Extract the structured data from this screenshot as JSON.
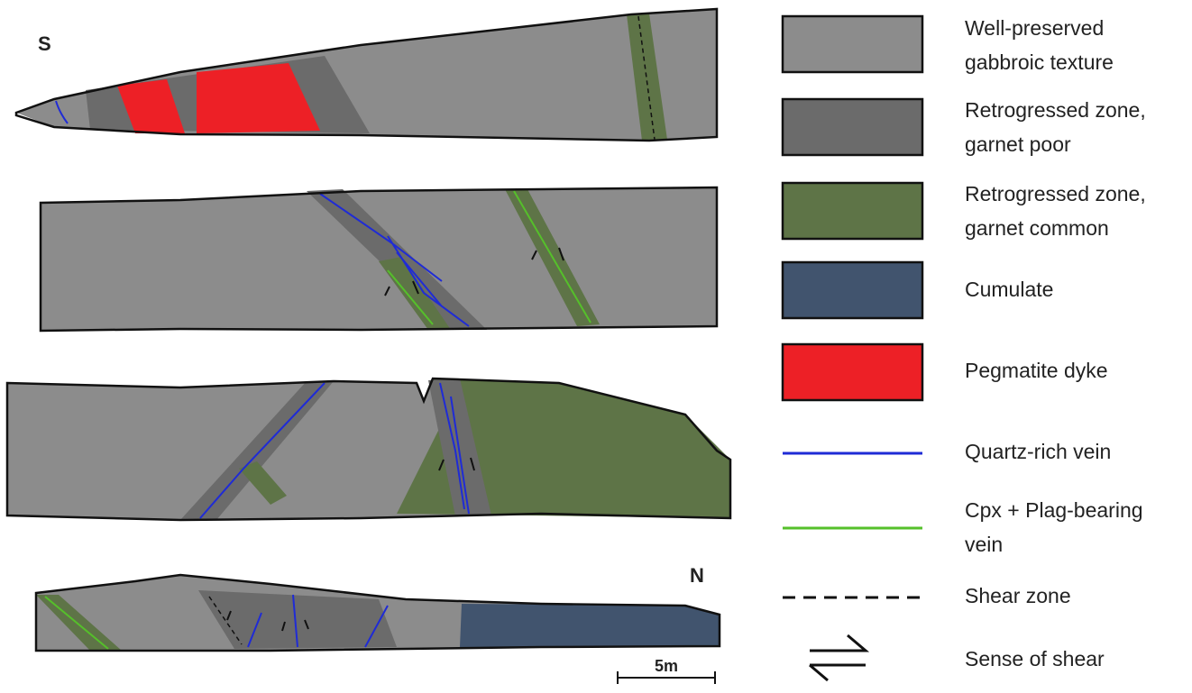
{
  "labels": {
    "south": "S",
    "north": "N",
    "scale": "5m"
  },
  "legend": [
    {
      "lines": [
        "Well-preserved",
        "gabbroic texture"
      ]
    },
    {
      "lines": [
        "Retrogressed zone,",
        "garnet poor"
      ]
    },
    {
      "lines": [
        "Retrogressed zone,",
        "garnet common"
      ]
    },
    {
      "lines": [
        "Cumulate"
      ]
    },
    {
      "lines": [
        "Pegmatite dyke"
      ]
    },
    {
      "lines": [
        "Quartz-rich vein"
      ]
    },
    {
      "lines": [
        "Cpx + Plag-bearing",
        "vein"
      ]
    },
    {
      "lines": [
        "Shear zone"
      ]
    },
    {
      "lines": [
        "Sense of shear"
      ]
    }
  ]
}
